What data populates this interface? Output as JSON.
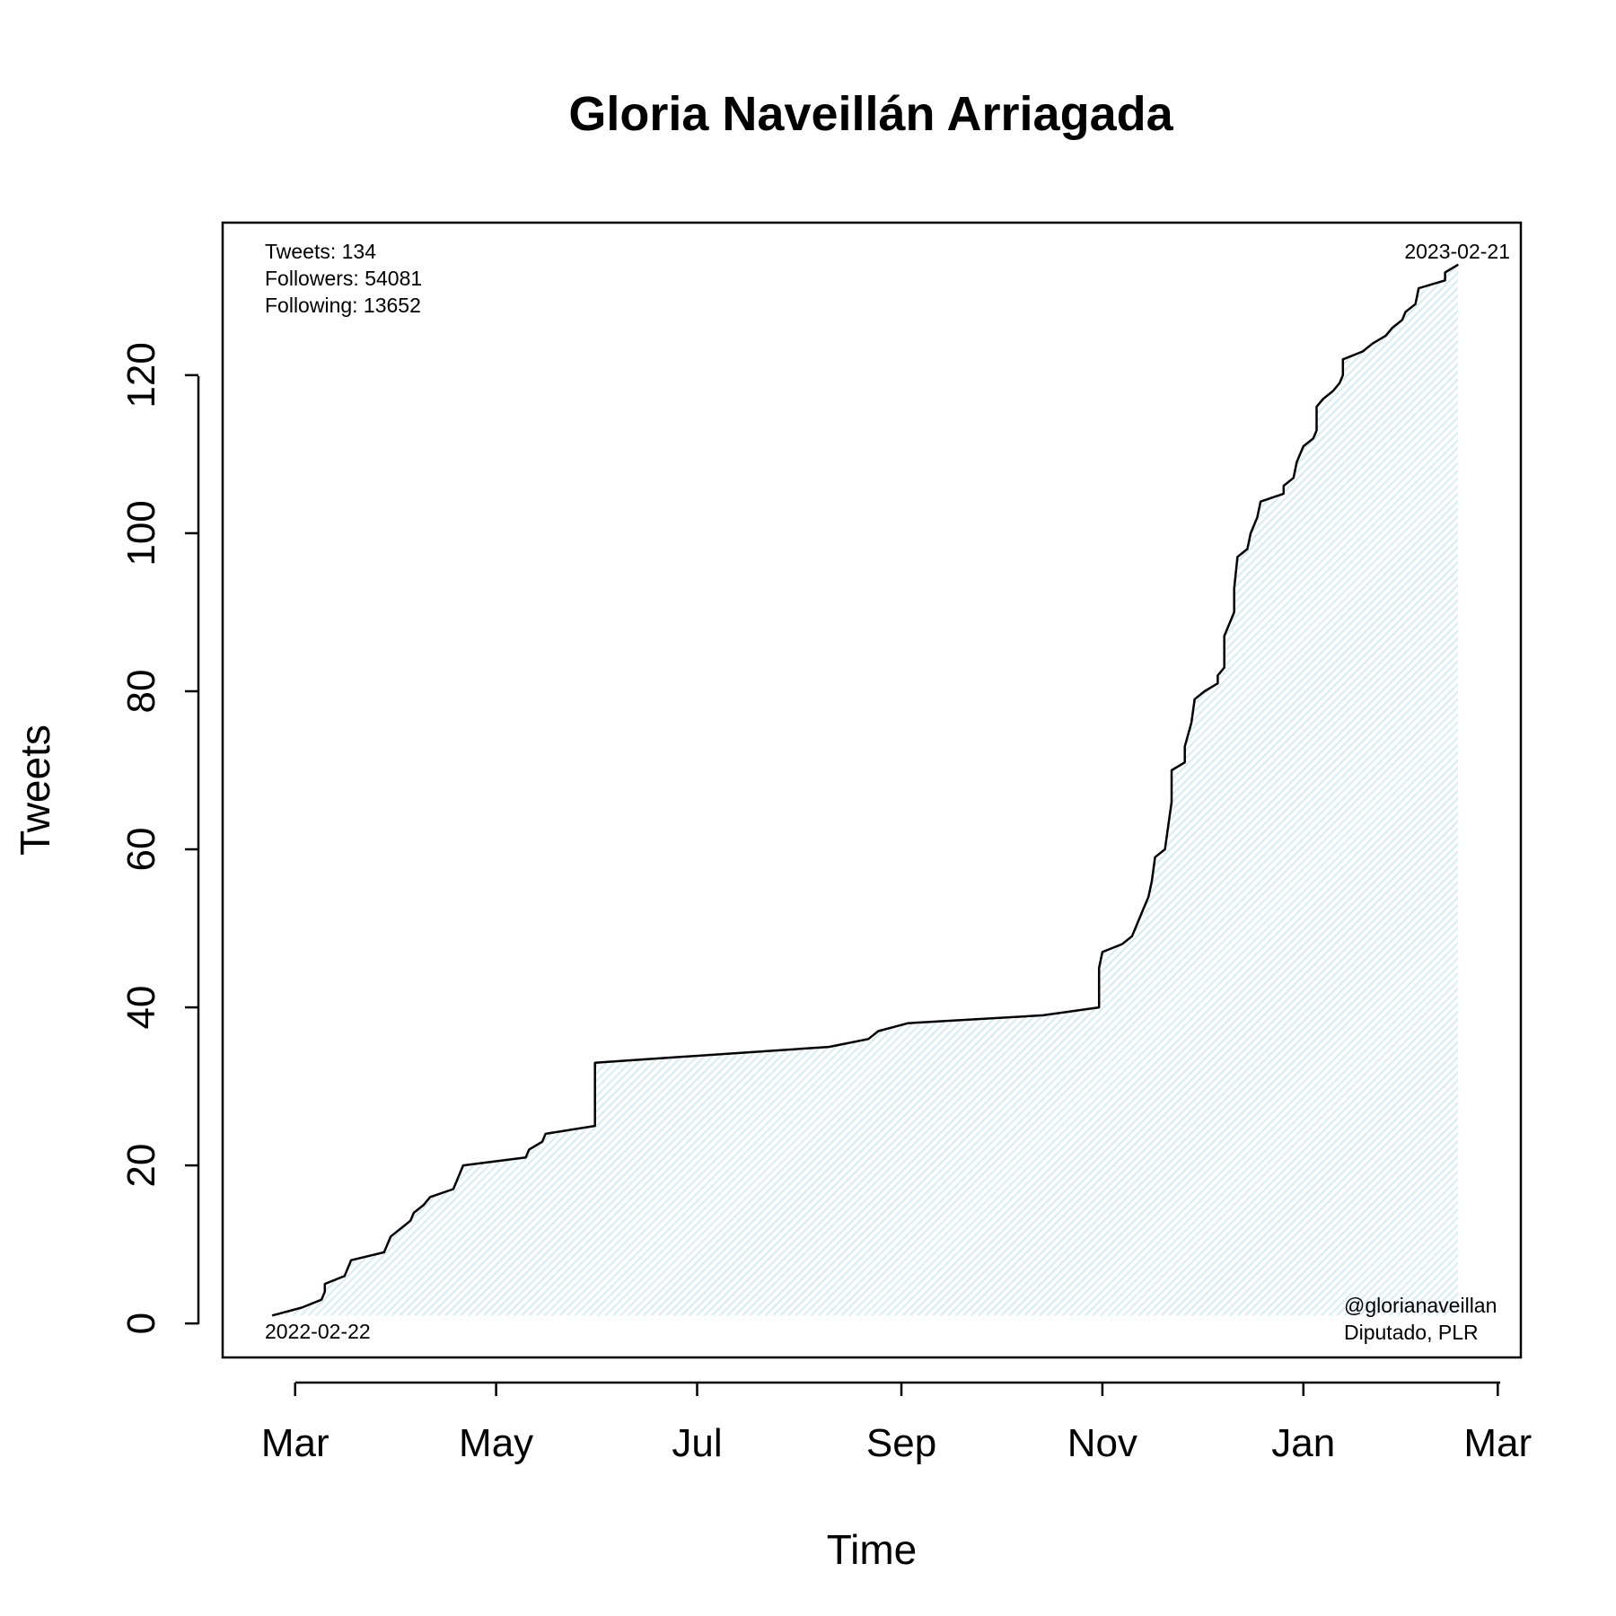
{
  "chart_data": {
    "type": "area",
    "title": "Gloria Naveillán Arriagada",
    "xlabel": "Time",
    "ylabel": "Tweets",
    "x_ticks": [
      "Mar",
      "May",
      "Jul",
      "Sep",
      "Nov",
      "Jan",
      "Mar"
    ],
    "x_tick_dates": [
      "2022-03-01",
      "2022-05-01",
      "2022-07-01",
      "2022-09-01",
      "2022-11-01",
      "2023-01-01",
      "2023-03-01"
    ],
    "xlim": [
      "2022-02-07",
      "2023-03-08"
    ],
    "y_ticks": [
      0,
      20,
      40,
      60,
      80,
      100,
      120
    ],
    "ylim": [
      -4.3,
      139.3
    ],
    "grid": false,
    "fill_color": "#d6ecf2",
    "line_color": "#000000",
    "annotations": {
      "stats": [
        "Tweets: 134",
        "Followers: 54081",
        "Following: 13652"
      ],
      "start_date": "2022-02-22",
      "end_date": "2023-02-21",
      "handle": "@glorianaveillan",
      "affiliation": "Diputado, PLR"
    },
    "series": [
      {
        "values": [
          [
            "2022-02-22",
            1
          ],
          [
            "2022-03-03",
            2
          ],
          [
            "2022-03-09",
            3
          ],
          [
            "2022-03-10",
            4
          ],
          [
            "2022-03-10",
            5
          ],
          [
            "2022-03-16",
            6
          ],
          [
            "2022-03-18",
            8
          ],
          [
            "2022-03-28",
            9
          ],
          [
            "2022-03-30",
            11
          ],
          [
            "2022-04-05",
            13
          ],
          [
            "2022-04-06",
            14
          ],
          [
            "2022-04-09",
            15
          ],
          [
            "2022-04-11",
            16
          ],
          [
            "2022-04-18",
            17
          ],
          [
            "2022-04-19",
            18
          ],
          [
            "2022-04-21",
            20
          ],
          [
            "2022-05-10",
            21
          ],
          [
            "2022-05-11",
            22
          ],
          [
            "2022-05-15",
            23
          ],
          [
            "2022-05-16",
            24
          ],
          [
            "2022-05-31",
            25
          ],
          [
            "2022-05-31",
            33
          ],
          [
            "2022-08-10",
            35
          ],
          [
            "2022-08-22",
            36
          ],
          [
            "2022-08-25",
            37
          ],
          [
            "2022-09-03",
            38
          ],
          [
            "2022-10-14",
            39
          ],
          [
            "2022-10-31",
            40
          ],
          [
            "2022-10-31",
            45
          ],
          [
            "2022-11-01",
            47
          ],
          [
            "2022-11-07",
            48
          ],
          [
            "2022-11-10",
            49
          ],
          [
            "2022-11-11",
            50
          ],
          [
            "2022-11-13",
            52
          ],
          [
            "2022-11-15",
            54
          ],
          [
            "2022-11-16",
            56
          ],
          [
            "2022-11-17",
            59
          ],
          [
            "2022-11-20",
            60
          ],
          [
            "2022-11-21",
            63
          ],
          [
            "2022-11-22",
            66
          ],
          [
            "2022-11-22",
            70
          ],
          [
            "2022-11-26",
            71
          ],
          [
            "2022-11-26",
            73
          ],
          [
            "2022-11-28",
            76
          ],
          [
            "2022-11-29",
            79
          ],
          [
            "2022-12-02",
            80
          ],
          [
            "2022-12-06",
            81
          ],
          [
            "2022-12-06",
            82
          ],
          [
            "2022-12-08",
            83
          ],
          [
            "2022-12-08",
            87
          ],
          [
            "2022-12-11",
            90
          ],
          [
            "2022-12-11",
            93
          ],
          [
            "2022-12-12",
            97
          ],
          [
            "2022-12-15",
            98
          ],
          [
            "2022-12-16",
            100
          ],
          [
            "2022-12-18",
            102
          ],
          [
            "2022-12-19",
            104
          ],
          [
            "2022-12-26",
            105
          ],
          [
            "2022-12-26",
            106
          ],
          [
            "2022-12-29",
            107
          ],
          [
            "2022-12-30",
            109
          ],
          [
            "2023-01-01",
            111
          ],
          [
            "2023-01-04",
            112
          ],
          [
            "2023-01-05",
            113
          ],
          [
            "2023-01-05",
            116
          ],
          [
            "2023-01-07",
            117
          ],
          [
            "2023-01-10",
            118
          ],
          [
            "2023-01-12",
            119
          ],
          [
            "2023-01-13",
            120
          ],
          [
            "2023-01-13",
            122
          ],
          [
            "2023-01-19",
            123
          ],
          [
            "2023-01-22",
            124
          ],
          [
            "2023-01-26",
            125
          ],
          [
            "2023-01-28",
            126
          ],
          [
            "2023-01-31",
            127
          ],
          [
            "2023-02-01",
            128
          ],
          [
            "2023-02-04",
            129
          ],
          [
            "2023-02-05",
            131
          ],
          [
            "2023-02-13",
            132
          ],
          [
            "2023-02-13",
            133
          ],
          [
            "2023-02-17",
            134
          ]
        ]
      }
    ]
  }
}
